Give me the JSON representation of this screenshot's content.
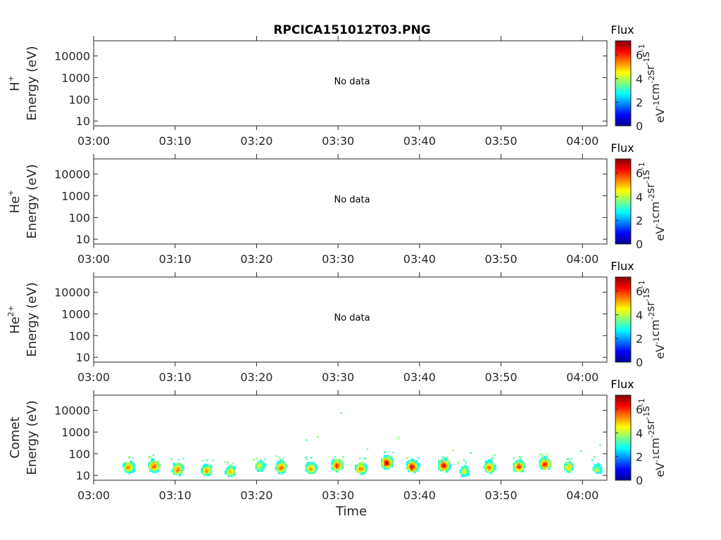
{
  "title": "RPCICA151012T03.PNG",
  "colors": {
    "axis": "#262626",
    "background": "#ffffff",
    "colormap": [
      "#00008f",
      "#0000ff",
      "#00ffff",
      "#ffff00",
      "#ff0000",
      "#800000"
    ]
  },
  "chart_data": [
    {
      "type": "heatmap",
      "panel": "H+",
      "ylabel_species": "H",
      "ylabel_charge": "+",
      "ylabel": "Energy (eV)",
      "xlabel": "",
      "x_ticks": [
        "03:00",
        "03:10",
        "03:20",
        "03:30",
        "03:40",
        "03:50",
        "04:00"
      ],
      "x_range_minutes": [
        0,
        63
      ],
      "y_ticks": [
        "10",
        "100",
        "1000",
        "10000"
      ],
      "y_scale": "log",
      "y_range": [
        6,
        50000
      ],
      "message": "No data",
      "colorbar": {
        "title": "Flux",
        "ticks": [
          "0",
          "2",
          "4",
          "6"
        ],
        "range": [
          0,
          7.2
        ]
      },
      "cells": []
    },
    {
      "type": "heatmap",
      "panel": "He+",
      "ylabel_species": "He",
      "ylabel_charge": "+",
      "ylabel": "Energy (eV)",
      "xlabel": "",
      "x_ticks": [
        "03:00",
        "03:10",
        "03:20",
        "03:30",
        "03:40",
        "03:50",
        "04:00"
      ],
      "x_range_minutes": [
        0,
        63
      ],
      "y_ticks": [
        "10",
        "100",
        "1000",
        "10000"
      ],
      "y_scale": "log",
      "y_range": [
        6,
        50000
      ],
      "message": "No data",
      "colorbar": {
        "title": "Flux",
        "ticks": [
          "0",
          "2",
          "4",
          "6"
        ],
        "range": [
          0,
          7.2
        ]
      },
      "cells": []
    },
    {
      "type": "heatmap",
      "panel": "He2+",
      "ylabel_species": "He",
      "ylabel_charge": "2+",
      "ylabel": "Energy (eV)",
      "xlabel": "",
      "x_ticks": [
        "03:00",
        "03:10",
        "03:20",
        "03:30",
        "03:40",
        "03:50",
        "04:00"
      ],
      "x_range_minutes": [
        0,
        63
      ],
      "y_ticks": [
        "10",
        "100",
        "1000",
        "10000"
      ],
      "y_scale": "log",
      "y_range": [
        6,
        50000
      ],
      "message": "No data",
      "colorbar": {
        "title": "Flux",
        "ticks": [
          "0",
          "2",
          "4",
          "6"
        ],
        "range": [
          0,
          7.2
        ]
      },
      "cells": []
    },
    {
      "type": "heatmap",
      "panel": "Comet",
      "ylabel_species": "Comet",
      "ylabel_charge": "",
      "ylabel": "Energy (eV)",
      "xlabel": "Time",
      "x_ticks": [
        "03:00",
        "03:10",
        "03:20",
        "03:30",
        "03:40",
        "03:50",
        "04:00"
      ],
      "x_range_minutes": [
        0,
        63
      ],
      "y_ticks": [
        "10",
        "100",
        "1000",
        "10000"
      ],
      "y_scale": "log",
      "y_range": [
        6,
        50000
      ],
      "message": "",
      "colorbar": {
        "title": "Flux",
        "ticks": [
          "0",
          "2",
          "4",
          "6"
        ],
        "range": [
          0,
          7.2
        ]
      },
      "bursts": [
        {
          "t": 4.2,
          "e": 25,
          "peak": 5.5,
          "hi": 60
        },
        {
          "t": 7.3,
          "e": 28,
          "peak": 5.8,
          "hi": 70
        },
        {
          "t": 10.2,
          "e": 20,
          "peak": 5.5,
          "hi": 45
        },
        {
          "t": 13.8,
          "e": 18,
          "peak": 5.2,
          "hi": 35
        },
        {
          "t": 16.7,
          "e": 16,
          "peak": 5.0,
          "hi": 40
        },
        {
          "t": 20.3,
          "e": 28,
          "peak": 4.3,
          "hi": 35
        },
        {
          "t": 22.9,
          "e": 25,
          "peak": 5.6,
          "hi": 60
        },
        {
          "t": 26.6,
          "e": 22,
          "peak": 5.3,
          "hi": 50
        },
        {
          "t": 29.8,
          "e": 30,
          "peak": 6.0,
          "hi": 50
        },
        {
          "t": 32.7,
          "e": 22,
          "peak": 5.6,
          "hi": 45
        },
        {
          "t": 35.9,
          "e": 40,
          "peak": 6.6,
          "hi": 90
        },
        {
          "t": 39.0,
          "e": 27,
          "peak": 6.6,
          "hi": 45
        },
        {
          "t": 42.9,
          "e": 30,
          "peak": 6.4,
          "hi": 45
        },
        {
          "t": 45.4,
          "e": 16,
          "peak": 4.2,
          "hi": 40
        },
        {
          "t": 48.5,
          "e": 25,
          "peak": 5.6,
          "hi": 70
        },
        {
          "t": 52.1,
          "e": 27,
          "peak": 6.0,
          "hi": 50
        },
        {
          "t": 55.3,
          "e": 35,
          "peak": 6.2,
          "hi": 80
        },
        {
          "t": 58.2,
          "e": 25,
          "peak": 4.8,
          "hi": 40
        },
        {
          "t": 61.7,
          "e": 20,
          "peak": 4.0,
          "hi": 280
        }
      ]
    }
  ]
}
